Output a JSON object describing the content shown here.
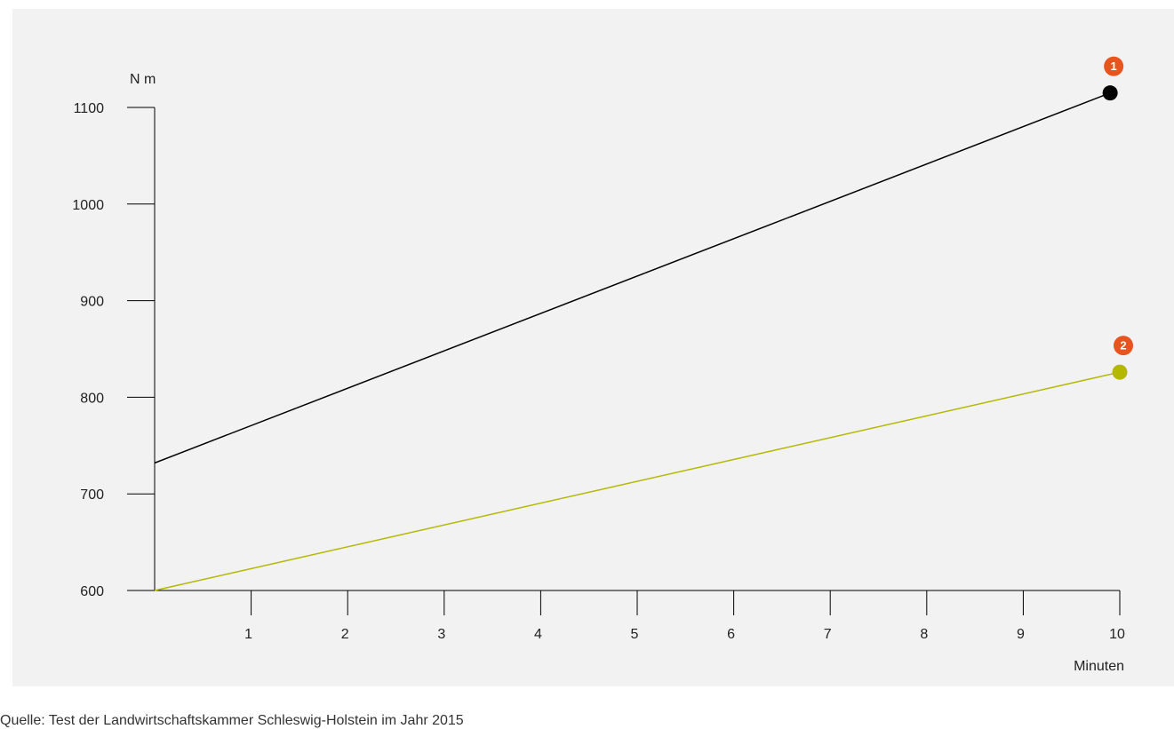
{
  "chart_data": {
    "type": "line",
    "ylabel": "N m",
    "xlabel": "Minuten",
    "xlim": [
      0,
      10
    ],
    "ylim": [
      600,
      1100
    ],
    "x_ticks": [
      "1",
      "2",
      "3",
      "4",
      "5",
      "6",
      "7",
      "8",
      "9",
      "10"
    ],
    "y_ticks": [
      "600",
      "700",
      "800",
      "900",
      "1000",
      "1100"
    ],
    "grid": false,
    "series": [
      {
        "marker_label": "1",
        "color": "#000000",
        "points": [
          {
            "x": 0,
            "y": 732
          },
          {
            "x": 9.9,
            "y": 1115
          }
        ]
      },
      {
        "marker_label": "2",
        "color": "#b5b800",
        "points": [
          {
            "x": 0,
            "y": 600
          },
          {
            "x": 10,
            "y": 826
          }
        ]
      }
    ],
    "marker_badge_color": "#e8541e"
  },
  "source": "Quelle: Test der Landwirtschaftskammer Schleswig-Holstein im Jahr 2015"
}
